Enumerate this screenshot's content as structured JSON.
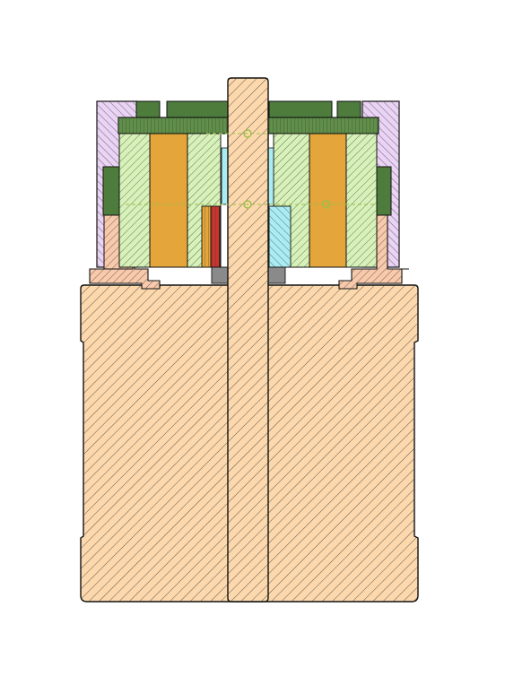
{
  "drawing": {
    "kind": "cad-section-view",
    "colors": {
      "background": "#ffffff",
      "base_body": "#fcd8ac",
      "shaft": "#fcd8ac",
      "collar": "#f8c9aa",
      "housing_purple": "#ead3f4",
      "cover_dark_green": "#4e7c3c",
      "cover_mid_green": "#5f8f48",
      "light_green_part": "#d7f2b8",
      "orange_magnet": "#e4a53a",
      "cyan_part": "#a9ecf2",
      "red_part": "#c9352d",
      "gray_part": "#8a8a8a",
      "hatch_line": "#3a3a3a",
      "outline": "#111111",
      "centerline": "#9cbf4a"
    },
    "parts": [
      {
        "id": "base-body",
        "icon": "hatched-rectangle"
      },
      {
        "id": "center-shaft",
        "icon": "hatched-rectangle"
      },
      {
        "id": "left-housing",
        "icon": "hatched-rectangle"
      },
      {
        "id": "right-housing",
        "icon": "hatched-rectangle"
      },
      {
        "id": "top-cover",
        "icon": "solid-rectangle"
      },
      {
        "id": "left-magnet",
        "icon": "solid-rectangle"
      },
      {
        "id": "right-magnet",
        "icon": "solid-rectangle"
      },
      {
        "id": "cyan-insert",
        "icon": "hatched-rectangle"
      },
      {
        "id": "red-insert",
        "icon": "hatched-rectangle"
      }
    ]
  }
}
